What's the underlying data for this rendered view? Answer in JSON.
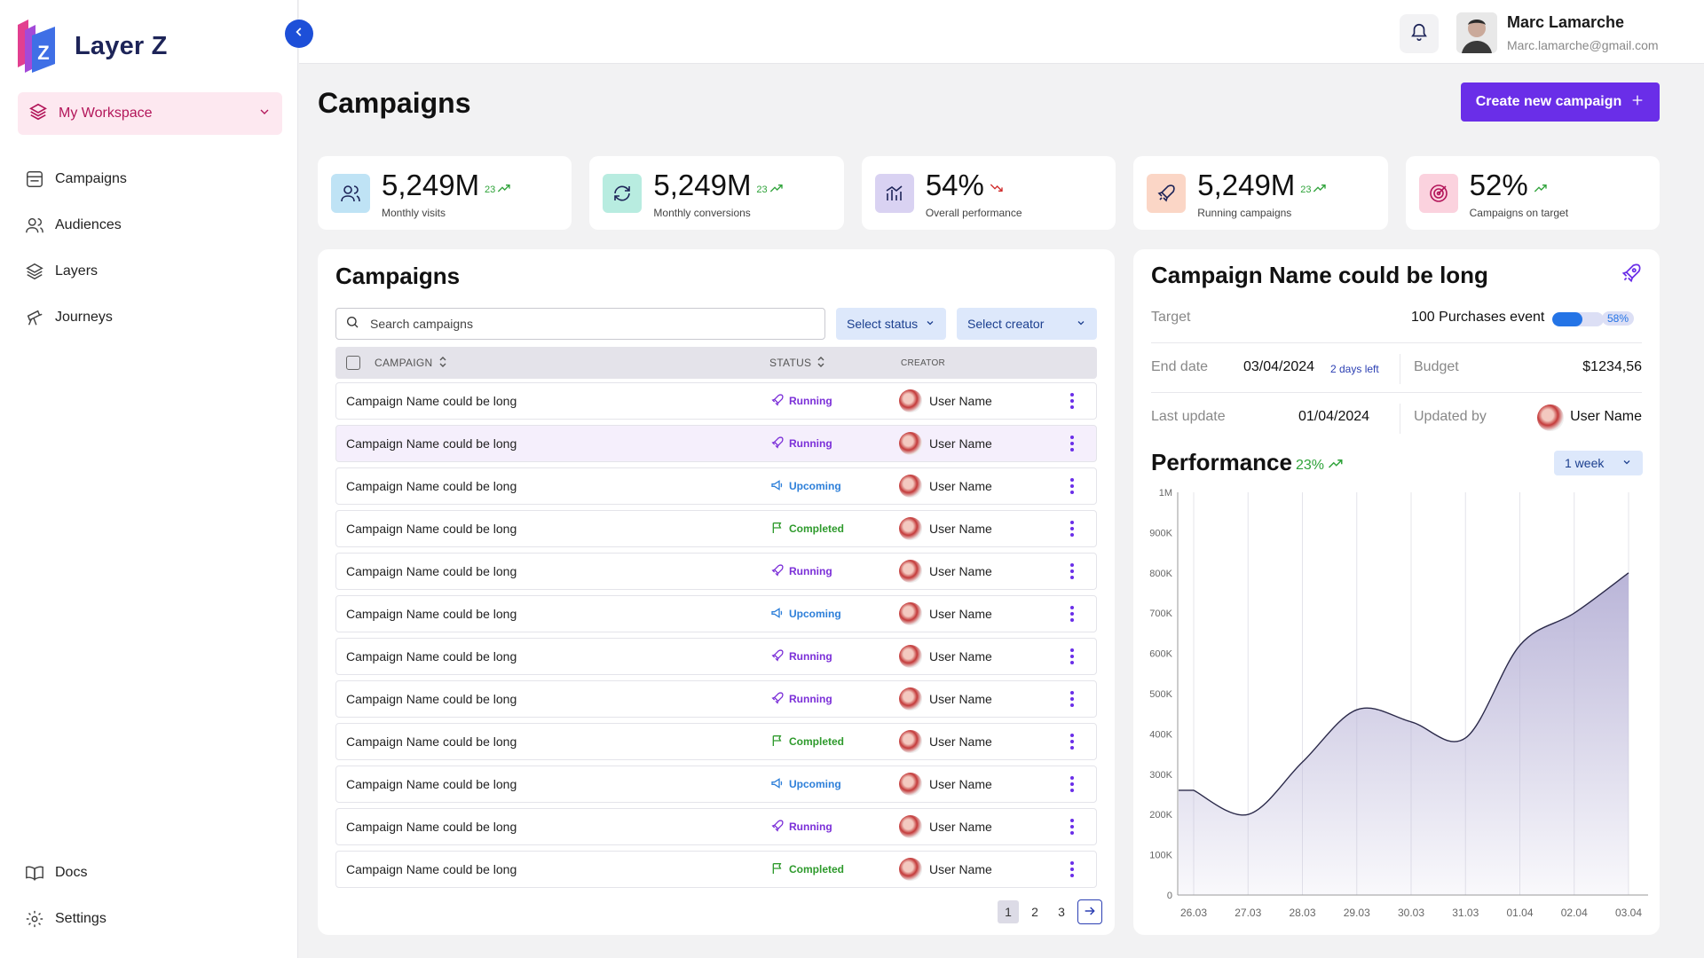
{
  "app": {
    "name": "Layer Z"
  },
  "sidebar": {
    "workspace": "My Workspace",
    "items": [
      {
        "label": "Campaigns",
        "icon": "campaigns-icon"
      },
      {
        "label": "Audiences",
        "icon": "audiences-icon"
      },
      {
        "label": "Layers",
        "icon": "layers-icon"
      },
      {
        "label": "Journeys",
        "icon": "journeys-icon"
      }
    ],
    "bottom": [
      {
        "label": "Docs",
        "icon": "book-icon"
      },
      {
        "label": "Settings",
        "icon": "gear-icon"
      }
    ]
  },
  "user": {
    "name": "Marc Lamarche",
    "email": "Marc.lamarche@gmail.com"
  },
  "page": {
    "title": "Campaigns",
    "create_label": "Create new campaign"
  },
  "stats": [
    {
      "value": "5,249M",
      "delta": "23",
      "trend": "up",
      "label": "Monthly visits",
      "bg": "#bfe3f5"
    },
    {
      "value": "5,249M",
      "delta": "23",
      "trend": "up",
      "label": "Monthly conversions",
      "bg": "#b8ece0"
    },
    {
      "value": "54%",
      "delta": "",
      "trend": "down",
      "label": "Overall performance",
      "bg": "#d9d2f2"
    },
    {
      "value": "5,249M",
      "delta": "23",
      "trend": "up",
      "label": "Running campaigns",
      "bg": "#fbd6c6"
    },
    {
      "value": "52%",
      "delta": "",
      "trend": "up",
      "label": "Campaigns on target",
      "bg": "#fbd2de"
    }
  ],
  "campaigns": {
    "title": "Campaigns",
    "search_placeholder": "Search campaigns",
    "filter_status": "Select status",
    "filter_creator": "Select creator",
    "col_campaign": "CAMPAIGN",
    "col_status": "STATUS",
    "col_creator": "CREATOR",
    "rows": [
      {
        "name": "Campaign Name could be long",
        "status": "Running",
        "creator": "User Name"
      },
      {
        "name": "Campaign Name could be long",
        "status": "Running",
        "creator": "User Name"
      },
      {
        "name": "Campaign Name could be long",
        "status": "Upcoming",
        "creator": "User Name"
      },
      {
        "name": "Campaign Name could be long",
        "status": "Completed",
        "creator": "User Name"
      },
      {
        "name": "Campaign Name could be long",
        "status": "Running",
        "creator": "User Name"
      },
      {
        "name": "Campaign Name could be long",
        "status": "Upcoming",
        "creator": "User Name"
      },
      {
        "name": "Campaign Name could be long",
        "status": "Running",
        "creator": "User Name"
      },
      {
        "name": "Campaign Name could be long",
        "status": "Running",
        "creator": "User Name"
      },
      {
        "name": "Campaign Name could be long",
        "status": "Completed",
        "creator": "User Name"
      },
      {
        "name": "Campaign Name could be long",
        "status": "Upcoming",
        "creator": "User Name"
      },
      {
        "name": "Campaign Name could be long",
        "status": "Running",
        "creator": "User Name"
      },
      {
        "name": "Campaign Name could be long",
        "status": "Completed",
        "creator": "User Name"
      }
    ],
    "pages": [
      "1",
      "2",
      "3"
    ],
    "current_page": "1"
  },
  "detail": {
    "title": "Campaign Name could be long",
    "target_label": "Target",
    "target_value": "100 Purchases event",
    "target_progress": 58,
    "target_progress_text": "58%",
    "end_date_label": "End date",
    "end_date": "03/04/2024",
    "days_left": "2 days left",
    "budget_label": "Budget",
    "budget": "$1234,56",
    "last_update_label": "Last update",
    "last_update": "01/04/2024",
    "updated_by_label": "Updated by",
    "updated_by": "User Name",
    "performance_title": "Performance",
    "performance_delta": "23%",
    "range": "1 week"
  },
  "chart_data": {
    "type": "area",
    "x": [
      "26.03",
      "27.03",
      "28.03",
      "29.03",
      "30.03",
      "31.03",
      "01.04",
      "02.04",
      "03.04"
    ],
    "values": [
      260000,
      200000,
      330000,
      460000,
      430000,
      390000,
      620000,
      700000,
      800000
    ],
    "yticks": [
      "0",
      "100K",
      "200K",
      "300K",
      "400K",
      "500K",
      "600K",
      "700K",
      "800K",
      "900K",
      "1M"
    ],
    "ylim": [
      0,
      1000000
    ],
    "grid": "vertical",
    "fill": "#b6b1d6",
    "stroke": "#2b2a4a"
  }
}
